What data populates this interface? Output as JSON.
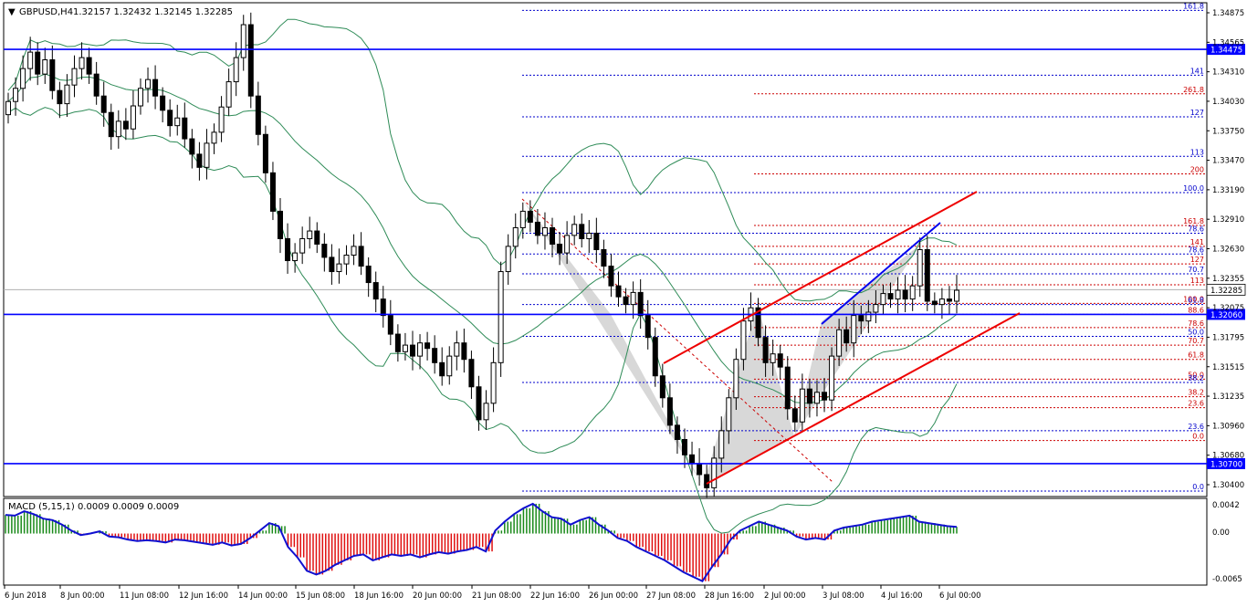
{
  "header": {
    "symbol": "GBPUSD,H4",
    "ohlc": "1.32157 1.32432 1.32145 1.32285",
    "menu_glyph": "▼"
  },
  "chart_data": {
    "type": "candlestick",
    "ylim": [
      1.304,
      1.349
    ],
    "y_ticks": [
      "1.34875",
      "1.34565",
      "1.34310",
      "1.34030",
      "1.33750",
      "1.33470",
      "1.33190",
      "1.32910",
      "1.32630",
      "1.32355",
      "1.32075",
      "1.31795",
      "1.31515",
      "1.31235",
      "1.30960",
      "1.30680",
      "1.30400"
    ],
    "x_ticks": [
      "6 Jun 2018",
      "8 Jun 00:00",
      "11 Jun 08:00",
      "12 Jun 16:00",
      "14 Jun 00:00",
      "15 Jun 08:00",
      "18 Jun 16:00",
      "20 Jun 00:00",
      "21 Jun 08:00",
      "22 Jun 16:00",
      "26 Jun 00:00",
      "27 Jun 08:00",
      "28 Jun 16:00",
      "2 Jul 00:00",
      "3 Jul 08:00",
      "4 Jul 16:00",
      "6 Jul 00:00"
    ],
    "horizontal_levels": [
      {
        "price": 1.34475,
        "label": "1.34475",
        "color": "#0000ff"
      },
      {
        "price": 1.3206,
        "label": "1.32060",
        "color": "#0000ff"
      },
      {
        "price": 1.307,
        "label": "1.30700",
        "color": "#0000ff"
      }
    ],
    "current_price": {
      "price": 1.32285,
      "label": "1.32285"
    },
    "fib_levels": [
      {
        "label": "161.8",
        "price": 1.3483,
        "color": "#0000cc"
      },
      {
        "label": "141",
        "price": 1.3424,
        "color": "#0000cc"
      },
      {
        "label": "261.8",
        "price": 1.3407,
        "color": "#cc0000"
      },
      {
        "label": "127",
        "price": 1.3386,
        "color": "#0000cc"
      },
      {
        "label": "113",
        "price": 1.335,
        "color": "#0000cc"
      },
      {
        "label": "200",
        "price": 1.3334,
        "color": "#cc0000"
      },
      {
        "label": "100.0",
        "price": 1.3317,
        "color": "#0000cc"
      },
      {
        "label": "161.8",
        "price": 1.3287,
        "color": "#cc0000"
      },
      {
        "label": "78.6",
        "price": 1.328,
        "color": "#0000cc"
      },
      {
        "label": "141",
        "price": 1.3268,
        "color": "#cc0000"
      },
      {
        "label": "78.6",
        "price": 1.3261,
        "color": "#0000cc"
      },
      {
        "label": "127",
        "price": 1.3252,
        "color": "#cc0000"
      },
      {
        "label": "70.7",
        "price": 1.3243,
        "color": "#0000cc"
      },
      {
        "label": "113",
        "price": 1.3233,
        "color": "#cc0000"
      },
      {
        "label": "100.0",
        "price": 1.3216,
        "color": "#cc0000"
      },
      {
        "label": "61.8",
        "price": 1.3215,
        "color": "#0000cc"
      },
      {
        "label": "88.6",
        "price": 1.3206,
        "color": "#cc0000"
      },
      {
        "label": "78.6",
        "price": 1.3194,
        "color": "#cc0000"
      },
      {
        "label": "50.0",
        "price": 1.3186,
        "color": "#0000cc"
      },
      {
        "label": "70.7",
        "price": 1.3178,
        "color": "#cc0000"
      },
      {
        "label": "61.8",
        "price": 1.3165,
        "color": "#cc0000"
      },
      {
        "label": "50.0",
        "price": 1.3147,
        "color": "#cc0000"
      },
      {
        "label": "38.2",
        "price": 1.3144,
        "color": "#0000cc"
      },
      {
        "label": "38.2",
        "price": 1.3131,
        "color": "#cc0000"
      },
      {
        "label": "23.6",
        "price": 1.3121,
        "color": "#cc0000"
      },
      {
        "label": "23.6",
        "price": 1.31,
        "color": "#0000cc"
      },
      {
        "label": "0.0",
        "price": 1.3091,
        "color": "#cc0000"
      },
      {
        "label": "0.0",
        "price": 1.3045,
        "color": "#0000cc"
      }
    ],
    "candles_close": [
      1.34,
      1.3412,
      1.343,
      1.3445,
      1.3425,
      1.3438,
      1.341,
      1.3398,
      1.3415,
      1.343,
      1.344,
      1.3425,
      1.3405,
      1.339,
      1.3368,
      1.3382,
      1.3375,
      1.3396,
      1.3412,
      1.342,
      1.3405,
      1.3392,
      1.3378,
      1.3385,
      1.3366,
      1.3352,
      1.334,
      1.3362,
      1.3372,
      1.3395,
      1.3418,
      1.344,
      1.347,
      1.3405,
      1.337,
      1.3335,
      1.33,
      1.3275,
      1.3255,
      1.3262,
      1.3275,
      1.3282,
      1.327,
      1.3258,
      1.3245,
      1.3252,
      1.326,
      1.3268,
      1.325,
      1.3235,
      1.322,
      1.3205,
      1.3188,
      1.3172,
      1.3178,
      1.3168,
      1.318,
      1.3175,
      1.3162,
      1.315,
      1.3168,
      1.318,
      1.3165,
      1.314,
      1.311,
      1.3125,
      1.3162,
      1.3245,
      1.3268,
      1.3285,
      1.33,
      1.329,
      1.3278,
      1.3285,
      1.327,
      1.3262,
      1.3278,
      1.3288,
      1.3275,
      1.328,
      1.3265,
      1.325,
      1.3232,
      1.3222,
      1.3215,
      1.3226,
      1.3205,
      1.3185,
      1.315,
      1.313,
      1.3105,
      1.3092,
      1.3078,
      1.307,
      1.306,
      1.3048,
      1.3075,
      1.31,
      1.313,
      1.3165,
      1.32,
      1.3212,
      1.3185,
      1.3162,
      1.317,
      1.3158,
      1.312,
      1.3108,
      1.3138,
      1.3125,
      1.3135,
      1.3128,
      1.3168,
      1.3192,
      1.318,
      1.3205,
      1.32,
      1.3208,
      1.3215,
      1.3225,
      1.322,
      1.3228,
      1.322,
      1.3232,
      1.3265,
      1.3218,
      1.3215,
      1.322,
      1.3218,
      1.3228
    ],
    "macd": {
      "label": "MACD (5,15,1) 0.0009 0.0009 0.0009",
      "ylim": [
        -0.0068,
        0.0046
      ],
      "y_ticks": [
        "0.0042",
        "0.00",
        "-0.0065"
      ],
      "values": [
        0.0025,
        0.0024,
        0.003,
        0.0026,
        0.002,
        0.0018,
        0.0012,
        0.0004,
        -0.0002,
        0.0,
        0.0003,
        -0.0004,
        -0.0005,
        -0.0008,
        -0.001,
        -0.0009,
        -0.001,
        -0.0012,
        -0.0008,
        -0.0009,
        -0.0011,
        -0.0013,
        -0.0015,
        -0.0012,
        -0.0016,
        -0.0014,
        -0.0006,
        0.0004,
        0.0014,
        0.001,
        -0.0018,
        -0.0032,
        -0.005,
        -0.0055,
        -0.005,
        -0.0042,
        -0.0036,
        -0.003,
        -0.0028,
        -0.0036,
        -0.0032,
        -0.0028,
        -0.003,
        -0.0028,
        -0.0032,
        -0.0028,
        -0.0025,
        -0.0027,
        -0.0024,
        -0.0022,
        -0.0018,
        -0.0024,
        0.0004,
        0.0016,
        0.0026,
        0.0034,
        0.004,
        0.003,
        0.0022,
        0.002,
        0.0012,
        0.0018,
        0.0022,
        0.0012,
        0.0004,
        -0.0006,
        -0.001,
        -0.0018,
        -0.0024,
        -0.003,
        -0.0036,
        -0.0044,
        -0.0052,
        -0.0058,
        -0.0064,
        -0.0045,
        -0.0028,
        -0.0008,
        0.0004,
        0.001,
        0.0016,
        0.0012,
        0.0008,
        0.0004,
        -0.0004,
        -0.0008,
        -0.0006,
        -0.0008,
        0.0004,
        0.0008,
        0.001,
        0.0012,
        0.0016,
        0.0018,
        0.002,
        0.0022,
        0.0024,
        0.0016,
        0.0014,
        0.0012,
        0.001,
        0.0009
      ]
    }
  }
}
